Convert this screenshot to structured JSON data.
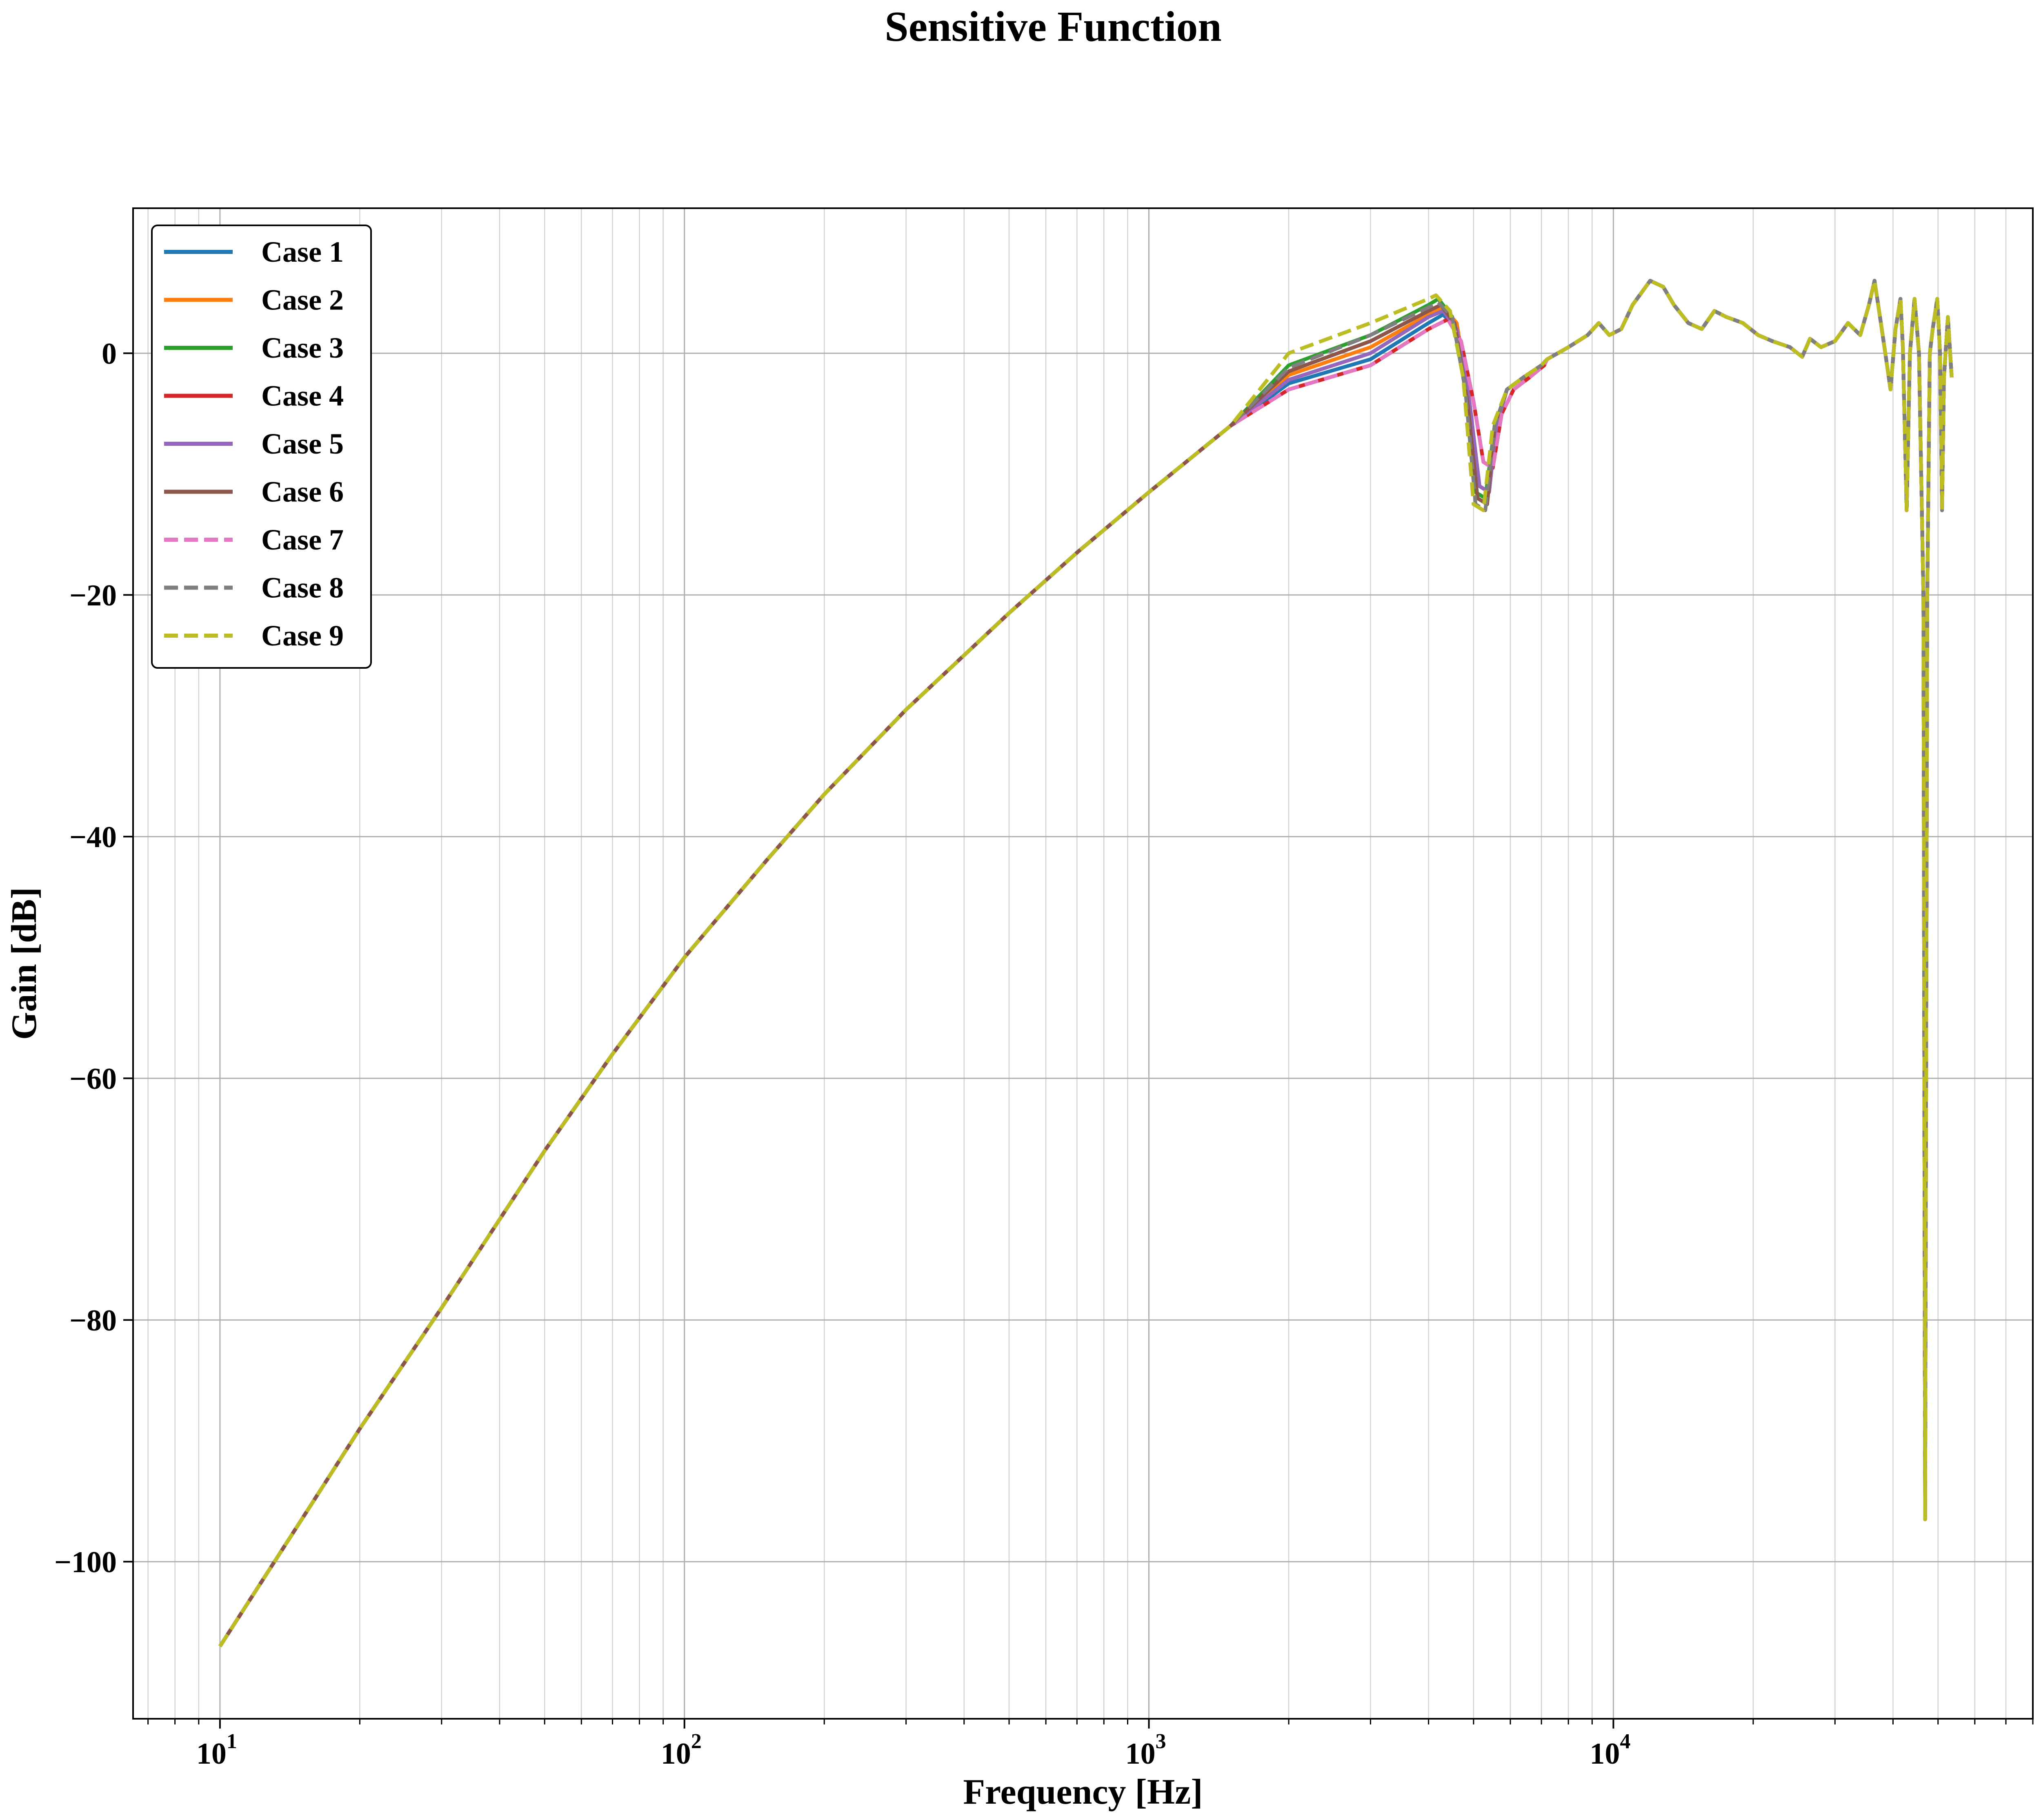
{
  "chart_data": {
    "type": "line",
    "title": "Sensitive Function",
    "xlabel": "Frequency [Hz]",
    "ylabel": "Gain [dB]",
    "xscale": "log",
    "xlim": [
      6.5,
      80000
    ],
    "ylim": [
      -113,
      12
    ],
    "grid": "major and minor",
    "legend_position": "upper-left",
    "x_ticks": [
      {
        "base": "10",
        "exp": "1",
        "value": 10
      },
      {
        "base": "10",
        "exp": "2",
        "value": 100
      },
      {
        "base": "10",
        "exp": "3",
        "value": 1000
      },
      {
        "base": "10",
        "exp": "4",
        "value": 10000
      }
    ],
    "y_ticks": [
      {
        "label": "0",
        "value": 0
      },
      {
        "label": "−20",
        "value": -20
      },
      {
        "label": "−40",
        "value": -40
      },
      {
        "label": "−60",
        "value": -60
      },
      {
        "label": "−80",
        "value": -80
      },
      {
        "label": "−100",
        "value": -100
      }
    ],
    "common_low": [
      [
        10,
        -107
      ],
      [
        15,
        -96.5
      ],
      [
        20,
        -89
      ],
      [
        30,
        -79
      ],
      [
        50,
        -66
      ],
      [
        70,
        -58
      ],
      [
        100,
        -50
      ],
      [
        150,
        -42
      ],
      [
        200,
        -36.5
      ],
      [
        300,
        -29.5
      ],
      [
        500,
        -21.5
      ],
      [
        700,
        -16.5
      ],
      [
        1000,
        -11.5
      ],
      [
        1500,
        -6
      ]
    ],
    "common_high": [
      [
        7200,
        -0.5
      ],
      [
        8000,
        0.5
      ],
      [
        8800,
        1.5
      ],
      [
        9300,
        2.5
      ],
      [
        9800,
        1.5
      ],
      [
        10400,
        2
      ],
      [
        11000,
        4
      ],
      [
        12000,
        6
      ],
      [
        12800,
        5.5
      ],
      [
        13500,
        4
      ],
      [
        14500,
        2.5
      ],
      [
        15500,
        2
      ],
      [
        16500,
        3.5
      ],
      [
        17500,
        3
      ],
      [
        19000,
        2.5
      ],
      [
        20500,
        1.5
      ],
      [
        22000,
        1
      ],
      [
        24000,
        0.5
      ],
      [
        25500,
        -0.3
      ],
      [
        26500,
        1.2
      ],
      [
        28000,
        0.5
      ],
      [
        30000,
        1
      ],
      [
        32000,
        2.5
      ],
      [
        34000,
        1.5
      ],
      [
        35500,
        4
      ],
      [
        36500,
        6
      ],
      [
        37500,
        3
      ],
      [
        38500,
        0
      ],
      [
        39500,
        -3
      ],
      [
        40500,
        2
      ],
      [
        41500,
        4.5
      ],
      [
        42000,
        0.5
      ],
      [
        42800,
        -13
      ],
      [
        43500,
        0
      ],
      [
        44500,
        4.5
      ],
      [
        45500,
        0
      ],
      [
        46500,
        -20
      ],
      [
        46900,
        -96.5
      ],
      [
        47400,
        -20
      ],
      [
        48000,
        0
      ],
      [
        48700,
        2
      ],
      [
        49800,
        4.5
      ],
      [
        50500,
        0
      ],
      [
        51000,
        -13
      ],
      [
        51500,
        -2
      ],
      [
        52500,
        3
      ],
      [
        53500,
        -2
      ]
    ],
    "series": [
      {
        "name": "Case 1",
        "color": "#1f77b4",
        "dash": "solid",
        "middle": [
          [
            2000,
            -2.5
          ],
          [
            3000,
            -0.5
          ],
          [
            4000,
            2.5
          ],
          [
            4300,
            3.2
          ],
          [
            4600,
            2
          ],
          [
            4900,
            -4
          ],
          [
            5150,
            -11
          ],
          [
            5400,
            -11.5
          ],
          [
            5600,
            -6
          ],
          [
            5900,
            -3
          ],
          [
            6400,
            -2
          ],
          [
            7000,
            -1
          ]
        ]
      },
      {
        "name": "Case 2",
        "color": "#ff7f0e",
        "dash": "solid",
        "middle": [
          [
            2000,
            -1.8
          ],
          [
            3000,
            0.5
          ],
          [
            4000,
            3.2
          ],
          [
            4300,
            3.8
          ],
          [
            4600,
            2.5
          ],
          [
            4900,
            -4
          ],
          [
            5150,
            -11
          ],
          [
            5400,
            -11.5
          ],
          [
            5600,
            -6
          ],
          [
            5900,
            -3
          ],
          [
            6400,
            -2
          ],
          [
            7000,
            -1
          ]
        ]
      },
      {
        "name": "Case 3",
        "color": "#2ca02c",
        "dash": "solid",
        "middle": [
          [
            2000,
            -1
          ],
          [
            3000,
            1.5
          ],
          [
            4000,
            4
          ],
          [
            4200,
            4.5
          ],
          [
            4500,
            3
          ],
          [
            4800,
            -3
          ],
          [
            5050,
            -11.5
          ],
          [
            5300,
            -12
          ],
          [
            5550,
            -6
          ],
          [
            5900,
            -3
          ],
          [
            6400,
            -2
          ],
          [
            7000,
            -1
          ]
        ]
      },
      {
        "name": "Case 4",
        "color": "#d62728",
        "dash": "solid",
        "middle": [
          [
            2000,
            -3
          ],
          [
            3000,
            -1
          ],
          [
            4000,
            2
          ],
          [
            4400,
            2.8
          ],
          [
            4700,
            1
          ],
          [
            5000,
            -4
          ],
          [
            5250,
            -9
          ],
          [
            5500,
            -9.5
          ],
          [
            5750,
            -5
          ],
          [
            6100,
            -3
          ],
          [
            6600,
            -2
          ],
          [
            7100,
            -1
          ]
        ]
      },
      {
        "name": "Case 5",
        "color": "#9467bd",
        "dash": "solid",
        "middle": [
          [
            2000,
            -2.2
          ],
          [
            3000,
            0
          ],
          [
            4000,
            3
          ],
          [
            4300,
            3.5
          ],
          [
            4600,
            2
          ],
          [
            4900,
            -4
          ],
          [
            5150,
            -11
          ],
          [
            5400,
            -11.5
          ],
          [
            5600,
            -6
          ],
          [
            5900,
            -3
          ],
          [
            6400,
            -2
          ],
          [
            7000,
            -1
          ]
        ]
      },
      {
        "name": "Case 6",
        "color": "#8c564b",
        "dash": "solid",
        "middle": [
          [
            2000,
            -1.5
          ],
          [
            3000,
            1
          ],
          [
            4000,
            3.5
          ],
          [
            4250,
            4
          ],
          [
            4550,
            2.5
          ],
          [
            4850,
            -4
          ],
          [
            5100,
            -12
          ],
          [
            5350,
            -12.5
          ],
          [
            5550,
            -6
          ],
          [
            5900,
            -3
          ],
          [
            6400,
            -2
          ],
          [
            7000,
            -1
          ]
        ]
      },
      {
        "name": "Case 7",
        "color": "#e377c2",
        "dash": "dashed",
        "middle": [
          [
            2000,
            -3
          ],
          [
            3000,
            -1
          ],
          [
            4000,
            2
          ],
          [
            4400,
            2.8
          ],
          [
            4700,
            1
          ],
          [
            5000,
            -4
          ],
          [
            5250,
            -9
          ],
          [
            5500,
            -9.5
          ],
          [
            5750,
            -5
          ],
          [
            6100,
            -3
          ],
          [
            6600,
            -2
          ],
          [
            7100,
            -1
          ]
        ]
      },
      {
        "name": "Case 8",
        "color": "#7f7f7f",
        "dash": "dashed",
        "middle": [
          [
            2000,
            -1.2
          ],
          [
            3000,
            1.5
          ],
          [
            4000,
            3.8
          ],
          [
            4200,
            4.2
          ],
          [
            4500,
            3
          ],
          [
            4800,
            -3
          ],
          [
            5050,
            -12.5
          ],
          [
            5300,
            -13
          ],
          [
            5550,
            -6
          ],
          [
            5900,
            -3
          ],
          [
            6400,
            -2
          ],
          [
            7000,
            -1
          ]
        ]
      },
      {
        "name": "Case 9",
        "color": "#bcbd22",
        "dash": "dashed",
        "middle": [
          [
            2000,
            0
          ],
          [
            3000,
            2.5
          ],
          [
            4000,
            4.5
          ],
          [
            4150,
            4.8
          ],
          [
            4450,
            3.5
          ],
          [
            4750,
            -2
          ],
          [
            5000,
            -12.5
          ],
          [
            5250,
            -13
          ],
          [
            5500,
            -6
          ],
          [
            5900,
            -3
          ],
          [
            6400,
            -2
          ],
          [
            7000,
            -1
          ]
        ]
      }
    ]
  }
}
